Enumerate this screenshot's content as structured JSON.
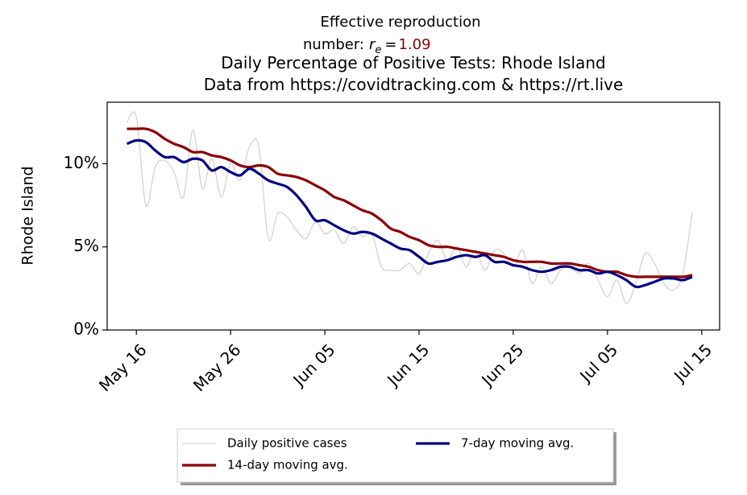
{
  "chart_data": {
    "type": "line",
    "annotation": {
      "lines": [
        "Effective reproduction",
        "number:"
      ],
      "symbol": "r",
      "subscript": "e",
      "equals": "=",
      "value": 1.09,
      "value_color": "#8b0000"
    },
    "title": [
      "Daily Percentage of Positive Tests: Rhode Island",
      "Data from https://covidtracking.com & https://rt.live"
    ],
    "ylabel": "Rhode Island",
    "categories": [
      null,
      "May 16",
      null,
      null,
      null,
      null,
      null,
      null,
      null,
      null,
      null,
      "May 26",
      null,
      null,
      null,
      null,
      null,
      null,
      null,
      null,
      null,
      "Jun 05",
      null,
      null,
      null,
      null,
      null,
      null,
      null,
      null,
      null,
      "Jun 15",
      null,
      null,
      null,
      null,
      null,
      null,
      null,
      null,
      null,
      "Jun 25",
      null,
      null,
      null,
      null,
      null,
      null,
      null,
      null,
      null,
      "Jul 05",
      null,
      null,
      null,
      null,
      null,
      null,
      null,
      null,
      null,
      "Jul 15"
    ],
    "series": [
      {
        "name": "Daily positive cases",
        "color": "#d3d3d3",
        "width": 1.3,
        "values": [
          12.5,
          12.8,
          7.5,
          9.8,
          10.2,
          9.5,
          8.0,
          12.0,
          8.5,
          10.3,
          8.0,
          10.0,
          9.0,
          11.0,
          11.0,
          5.5,
          7.0,
          6.8,
          6.0,
          5.5,
          6.5,
          5.8,
          6.0,
          5.2,
          6.2,
          5.6,
          5.8,
          3.8,
          3.6,
          3.6,
          4.0,
          3.4,
          4.6,
          5.4,
          4.2,
          5.0,
          3.8,
          4.8,
          3.6,
          4.8,
          4.6,
          3.8,
          4.8,
          2.8,
          3.8,
          2.8,
          3.6,
          3.8,
          3.4,
          4.0,
          3.0,
          2.0,
          3.0,
          1.6,
          2.8,
          4.6,
          4.0,
          2.8,
          2.4,
          3.4,
          7.1,
          null
        ]
      },
      {
        "name": "14-day moving avg.",
        "color": "#8b0000",
        "width": 3.2,
        "values": [
          12.1,
          12.1,
          12.1,
          11.9,
          11.5,
          11.2,
          11.0,
          10.7,
          10.7,
          10.5,
          10.4,
          10.2,
          9.9,
          9.8,
          9.9,
          9.8,
          9.4,
          9.3,
          9.2,
          9.0,
          8.7,
          8.4,
          8.0,
          7.8,
          7.5,
          7.2,
          7.0,
          6.6,
          6.1,
          5.9,
          5.6,
          5.4,
          5.1,
          5.0,
          5.0,
          4.9,
          4.8,
          4.7,
          4.6,
          4.5,
          4.4,
          4.2,
          4.1,
          4.1,
          4.1,
          4.0,
          4.0,
          4.0,
          3.9,
          3.8,
          3.6,
          3.5,
          3.5,
          3.3,
          3.2,
          3.2,
          3.2,
          3.2,
          3.2,
          3.2,
          3.3,
          null
        ]
      },
      {
        "name": "7-day moving avg.",
        "color": "#000080",
        "width": 3.2,
        "values": [
          11.2,
          11.4,
          11.3,
          10.8,
          10.4,
          10.4,
          10.1,
          10.3,
          10.2,
          9.6,
          9.8,
          9.5,
          9.3,
          9.7,
          9.4,
          9.0,
          8.8,
          8.6,
          8.1,
          7.4,
          6.6,
          6.6,
          6.3,
          6.0,
          5.8,
          5.9,
          5.8,
          5.5,
          5.2,
          4.9,
          4.8,
          4.4,
          4.0,
          4.1,
          4.2,
          4.4,
          4.5,
          4.4,
          4.5,
          4.1,
          4.1,
          3.9,
          3.8,
          3.6,
          3.5,
          3.6,
          3.8,
          3.8,
          3.6,
          3.6,
          3.4,
          3.5,
          3.3,
          3.0,
          2.6,
          2.7,
          2.9,
          3.1,
          3.1,
          3.0,
          3.2,
          null
        ]
      }
    ],
    "ylim": [
      0,
      13.7
    ],
    "yticks": [
      {
        "value": 0,
        "label": "0%"
      },
      {
        "value": 5,
        "label": "5%"
      },
      {
        "value": 10,
        "label": "10%"
      }
    ],
    "grid": false,
    "legend": "lower center"
  }
}
